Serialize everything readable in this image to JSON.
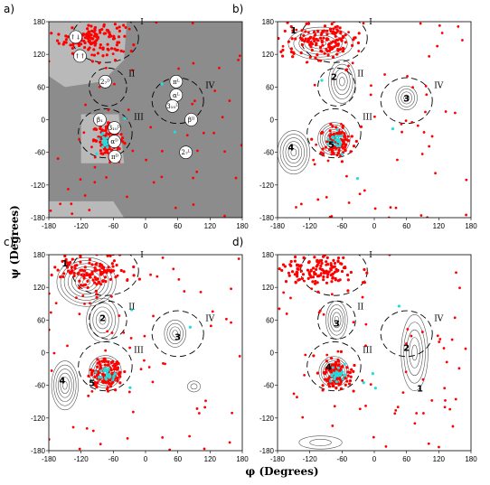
{
  "chart_data": {
    "type": "scatter",
    "xlabel": "φ (Degrees)",
    "ylabel": "ψ (Degrees)",
    "xlim": [
      -180,
      180
    ],
    "ylim": [
      -180,
      180
    ],
    "ticks": [
      -180,
      -120,
      -60,
      0,
      60,
      120,
      180
    ],
    "tick_labels": [
      "-180",
      "-120",
      "-60",
      "0",
      "60",
      "120",
      "180"
    ],
    "colors": {
      "residue": "#ff0000",
      "special": "#22dddd",
      "shade_dark": "#8c8c8c",
      "shade_light": "#b9b9b9",
      "contour": "#555555"
    },
    "regions": [
      {
        "label": "I",
        "phi": -75,
        "psi": 150,
        "rx": 62,
        "ry": 45
      },
      {
        "label": "II",
        "phi": -70,
        "psi": 60,
        "rx": 35,
        "ry": 35
      },
      {
        "label": "III",
        "phi": -75,
        "psi": -25,
        "rx": 50,
        "ry": 45
      },
      {
        "label": "IV",
        "phi": 60,
        "psi": 35,
        "rx": 48,
        "ry": 42
      }
    ],
    "panels": [
      {
        "letter": "a)",
        "shaded": true,
        "clusters": [
          {
            "phi": -100,
            "psi": 150,
            "spread_phi": 30,
            "spread_psi": 15,
            "n": 140
          },
          {
            "phi": -68,
            "psi": -38,
            "spread_phi": 14,
            "spread_psi": 14,
            "n": 100
          }
        ],
        "badges": [
          {
            "text": "↑↓",
            "phi": -130,
            "psi": 152
          },
          {
            "text": "↑↑",
            "phi": -122,
            "psi": 117
          },
          {
            "text": "2₇ᴰ",
            "phi": -75,
            "psi": 70
          },
          {
            "text": "β₁",
            "phi": -85,
            "psi": 0
          },
          {
            "text": "3₁₀ᴰ",
            "phi": -58,
            "psi": -15
          },
          {
            "text": "αᴰ",
            "phi": -58,
            "psi": -40
          },
          {
            "text": "πᴰ",
            "phi": -57,
            "psi": -68
          },
          {
            "text": "πᴸ",
            "phi": 57,
            "psi": 70
          },
          {
            "text": "αᴸ",
            "phi": 57,
            "psi": 45
          },
          {
            "text": "3₁₀ᴸ",
            "phi": 50,
            "psi": 25
          },
          {
            "text": "βᴵᴵ",
            "phi": 85,
            "psi": 0
          },
          {
            "text": "2₇ᴸ",
            "phi": 75,
            "psi": -60
          }
        ],
        "contours": []
      },
      {
        "letter": "b)",
        "shaded": false,
        "clusters": [
          {
            "phi": -95,
            "psi": 145,
            "spread_phi": 35,
            "spread_psi": 15,
            "n": 140
          },
          {
            "phi": -70,
            "psi": -38,
            "spread_phi": 15,
            "spread_psi": 15,
            "n": 100
          }
        ],
        "contours": [
          {
            "phi": -75,
            "psi": -35,
            "rx": 30,
            "ry": 30,
            "levels": 7
          },
          {
            "phi": -100,
            "psi": 140,
            "rx": 60,
            "ry": 30,
            "levels": 6
          },
          {
            "phi": -60,
            "psi": 70,
            "rx": 25,
            "ry": 40,
            "levels": 5
          },
          {
            "phi": -150,
            "psi": -60,
            "rx": 30,
            "ry": 40,
            "levels": 6
          },
          {
            "phi": 60,
            "psi": 40,
            "rx": 20,
            "ry": 22,
            "levels": 4
          }
        ],
        "numbers": [
          {
            "text": "1",
            "phi": -150,
            "psi": 165
          },
          {
            "text": "2",
            "phi": -75,
            "psi": 80
          },
          {
            "text": "3",
            "phi": 60,
            "psi": 40
          },
          {
            "text": "4",
            "phi": -155,
            "psi": -50
          },
          {
            "text": "5",
            "phi": -80,
            "psi": -45
          }
        ]
      },
      {
        "letter": "c)",
        "shaded": false,
        "clusters": [
          {
            "phi": -100,
            "psi": 150,
            "spread_phi": 35,
            "spread_psi": 15,
            "n": 130
          },
          {
            "phi": -70,
            "psi": -38,
            "spread_phi": 16,
            "spread_psi": 15,
            "n": 110
          }
        ],
        "contours": [
          {
            "phi": -75,
            "psi": -35,
            "rx": 30,
            "ry": 30,
            "levels": 7
          },
          {
            "phi": -110,
            "psi": 130,
            "rx": 55,
            "ry": 45,
            "levels": 8
          },
          {
            "phi": -80,
            "psi": 60,
            "rx": 30,
            "ry": 40,
            "levels": 5
          },
          {
            "phi": -150,
            "psi": -60,
            "rx": 25,
            "ry": 45,
            "levels": 6
          },
          {
            "phi": 55,
            "psi": 35,
            "rx": 20,
            "ry": 25,
            "levels": 4
          },
          {
            "phi": 90,
            "psi": -62,
            "rx": 12,
            "ry": 10,
            "levels": 2
          }
        ],
        "numbers": [
          {
            "text": "1",
            "phi": -150,
            "psi": 165
          },
          {
            "text": "2",
            "phi": -80,
            "psi": 65
          },
          {
            "text": "3",
            "phi": 60,
            "psi": 30
          },
          {
            "text": "4",
            "phi": -155,
            "psi": -50
          },
          {
            "text": "5",
            "phi": -100,
            "psi": -55
          }
        ]
      },
      {
        "letter": "d)",
        "shaded": false,
        "clusters": [
          {
            "phi": -100,
            "psi": 150,
            "spread_phi": 35,
            "spread_psi": 15,
            "n": 130
          },
          {
            "phi": -70,
            "psi": -38,
            "spread_phi": 15,
            "spread_psi": 15,
            "n": 110
          }
        ],
        "contours": [
          {
            "phi": -75,
            "psi": -35,
            "rx": 28,
            "ry": 28,
            "levels": 7
          },
          {
            "phi": -70,
            "psi": 60,
            "rx": 20,
            "ry": 35,
            "levels": 5
          },
          {
            "phi": 75,
            "psi": 0,
            "rx": 25,
            "ry": 70,
            "levels": 5
          },
          {
            "phi": -100,
            "psi": -165,
            "rx": 40,
            "ry": 12,
            "levels": 2
          }
        ],
        "numbers": [
          {
            "text": "1",
            "phi": 85,
            "psi": -65
          },
          {
            "text": "2",
            "phi": 60,
            "psi": 10
          },
          {
            "text": "3",
            "phi": -70,
            "psi": 55
          },
          {
            "text": "4",
            "phi": -85,
            "psi": -25
          }
        ]
      }
    ]
  }
}
